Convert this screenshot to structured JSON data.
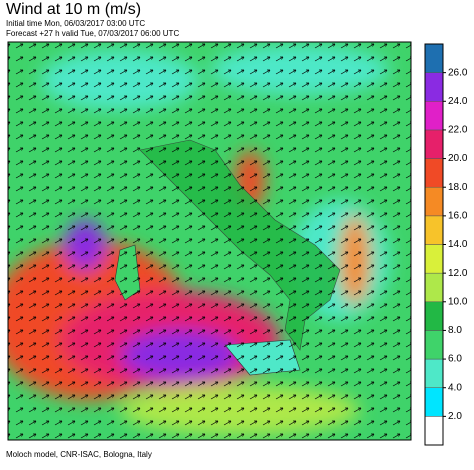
{
  "header": {
    "title": "Wind at 10 m (m/s)",
    "initial": "Initial time  Mon, 06/03/2017 03:00 UTC",
    "forecast": "Forecast +27 h valid  Tue, 07/03/2017 06:00 UTC"
  },
  "footer": "Moloch model, CNR-ISAC, Bologna, Italy",
  "chart_data": {
    "type": "colorbar",
    "ylim": [
      0,
      28
    ],
    "yticks": [
      {
        "value": 2,
        "label": "2.0"
      },
      {
        "value": 4,
        "label": "4.0"
      },
      {
        "value": 6,
        "label": "6.0"
      },
      {
        "value": 8,
        "label": "8.0"
      },
      {
        "value": 10,
        "label": "10.0"
      },
      {
        "value": 12,
        "label": "12.0"
      },
      {
        "value": 14,
        "label": "14.0"
      },
      {
        "value": 16,
        "label": "16.0"
      },
      {
        "value": 18,
        "label": "18.0"
      },
      {
        "value": 20,
        "label": "20.0"
      },
      {
        "value": 22,
        "label": "22.0"
      },
      {
        "value": 24,
        "label": "24.0"
      },
      {
        "value": 26,
        "label": "26.0"
      }
    ],
    "colors": [
      "#ffffff",
      "#00e5ff",
      "#4ee8c8",
      "#3fd36a",
      "#22b845",
      "#aee84a",
      "#d9f03a",
      "#f7c32a",
      "#f58a24",
      "#f04a26",
      "#e6206a",
      "#e020c8",
      "#8a2be2",
      "#1e6fb0"
    ]
  }
}
